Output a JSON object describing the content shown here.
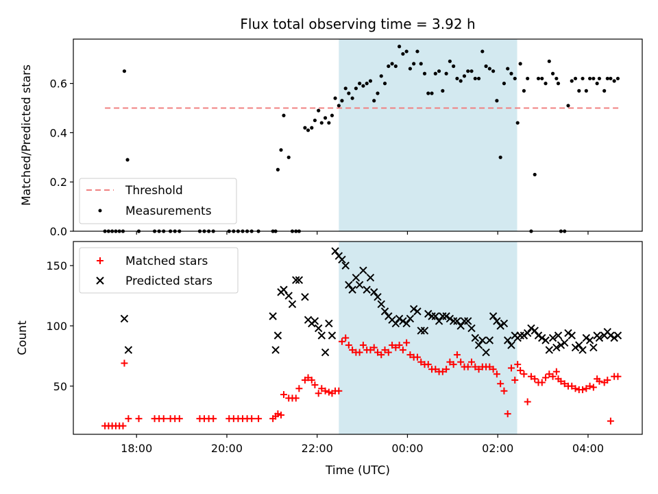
{
  "chart_data": {
    "title": "Flux total observing time = 3.92 h",
    "xlabel": "Time (UTC)",
    "x_ticks": [
      "18:00",
      "20:00",
      "22:00",
      "00:00",
      "02:00",
      "04:00"
    ],
    "x_tick_hours": [
      18,
      20,
      22,
      24,
      26,
      28
    ],
    "x_range_hours": [
      16.6,
      29.2
    ],
    "highlight_span_hours": [
      22.48,
      26.43
    ],
    "highlight_color": "#d3e9f0",
    "top_panel": {
      "type": "scatter",
      "ylabel": "Matched/Predicted stars",
      "ylim": [
        0,
        0.78
      ],
      "y_ticks": [
        0.0,
        0.2,
        0.4,
        0.6
      ],
      "threshold": {
        "name": "Threshold",
        "value": 0.5,
        "x_range_hours": [
          17.3,
          28.7
        ],
        "color": "#f08080"
      },
      "series": [
        {
          "name": "Measurements",
          "color": "#000000",
          "x": [
            17.3,
            17.38,
            17.46,
            17.54,
            17.62,
            17.7,
            17.73,
            17.8,
            18.05,
            18.4,
            18.5,
            18.6,
            18.75,
            18.85,
            18.95,
            19.4,
            19.5,
            19.6,
            19.7,
            20.05,
            20.15,
            20.25,
            20.35,
            20.45,
            20.55,
            20.7,
            21.02,
            21.08,
            21.13,
            21.2,
            21.26,
            21.37,
            21.45,
            21.53,
            21.6,
            21.73,
            21.8,
            21.88,
            21.95,
            22.03,
            22.1,
            22.18,
            22.26,
            22.33,
            22.4,
            22.48,
            22.55,
            22.63,
            22.7,
            22.78,
            22.86,
            22.94,
            23.02,
            23.1,
            23.18,
            23.26,
            23.34,
            23.42,
            23.5,
            23.58,
            23.66,
            23.74,
            23.82,
            23.9,
            23.98,
            24.06,
            24.14,
            24.22,
            24.3,
            24.38,
            24.46,
            24.54,
            24.62,
            24.7,
            24.78,
            24.86,
            24.94,
            25.02,
            25.1,
            25.18,
            25.26,
            25.34,
            25.42,
            25.5,
            25.58,
            25.66,
            25.74,
            25.82,
            25.9,
            25.98,
            26.06,
            26.14,
            26.22,
            26.3,
            26.38,
            26.44,
            26.5,
            26.58,
            26.66,
            26.74,
            26.82,
            26.9,
            26.98,
            27.06,
            27.14,
            27.22,
            27.3,
            27.34,
            27.4,
            27.48,
            27.56,
            27.64,
            27.72,
            27.8,
            27.88,
            27.96,
            28.04,
            28.12,
            28.2,
            28.25,
            28.36,
            28.43,
            28.5,
            28.58,
            28.66
          ],
          "y": [
            0.0,
            0.0,
            0.0,
            0.0,
            0.0,
            0.0,
            0.65,
            0.29,
            0.0,
            0.0,
            0.0,
            0.0,
            0.0,
            0.0,
            0.0,
            0.0,
            0.0,
            0.0,
            0.0,
            0.0,
            0.0,
            0.0,
            0.0,
            0.0,
            0.0,
            0.0,
            0.0,
            0.0,
            0.25,
            0.33,
            0.47,
            0.3,
            0.0,
            0.0,
            0.0,
            0.42,
            0.41,
            0.42,
            0.45,
            0.49,
            0.44,
            0.46,
            0.44,
            0.47,
            0.54,
            0.51,
            0.53,
            0.58,
            0.56,
            0.54,
            0.58,
            0.6,
            0.59,
            0.6,
            0.61,
            0.53,
            0.56,
            0.63,
            0.6,
            0.67,
            0.68,
            0.67,
            0.75,
            0.72,
            0.73,
            0.66,
            0.68,
            0.73,
            0.68,
            0.64,
            0.56,
            0.56,
            0.64,
            0.65,
            0.57,
            0.64,
            0.69,
            0.67,
            0.62,
            0.61,
            0.63,
            0.65,
            0.65,
            0.62,
            0.62,
            0.73,
            0.67,
            0.66,
            0.65,
            0.53,
            0.3,
            0.6,
            0.66,
            0.64,
            0.62,
            0.44,
            0.68,
            0.57,
            0.62,
            0.0,
            0.23,
            0.62,
            0.62,
            0.6,
            0.69,
            0.64,
            0.62,
            0.6,
            0.0,
            0.0,
            0.51,
            0.61,
            0.62,
            0.57,
            0.62,
            0.57,
            0.62,
            0.62,
            0.6,
            0.62,
            0.57,
            0.62,
            0.62,
            0.61,
            0.62
          ]
        }
      ]
    },
    "bottom_panel": {
      "type": "scatter",
      "ylabel": "Count",
      "ylim": [
        10,
        170
      ],
      "y_ticks": [
        50,
        100,
        150
      ],
      "series": [
        {
          "name": "Matched stars",
          "marker": "+",
          "color": "#ff0000",
          "x": [
            17.3,
            17.38,
            17.46,
            17.54,
            17.62,
            17.7,
            17.73,
            17.82,
            18.05,
            18.4,
            18.5,
            18.6,
            18.75,
            18.85,
            18.95,
            19.4,
            19.5,
            19.6,
            19.7,
            20.05,
            20.15,
            20.25,
            20.35,
            20.45,
            20.55,
            20.7,
            21.02,
            21.08,
            21.13,
            21.2,
            21.26,
            21.37,
            21.45,
            21.53,
            21.6,
            21.73,
            21.8,
            21.88,
            21.95,
            22.03,
            22.1,
            22.18,
            22.26,
            22.33,
            22.4,
            22.48,
            22.55,
            22.63,
            22.7,
            22.78,
            22.86,
            22.94,
            23.02,
            23.1,
            23.18,
            23.26,
            23.34,
            23.42,
            23.5,
            23.58,
            23.66,
            23.74,
            23.82,
            23.9,
            23.98,
            24.06,
            24.14,
            24.22,
            24.3,
            24.38,
            24.46,
            24.54,
            24.62,
            24.7,
            24.78,
            24.86,
            24.94,
            25.02,
            25.1,
            25.18,
            25.26,
            25.34,
            25.42,
            25.5,
            25.58,
            25.66,
            25.74,
            25.82,
            25.9,
            25.98,
            26.06,
            26.14,
            26.22,
            26.3,
            26.38,
            26.44,
            26.5,
            26.58,
            26.66,
            26.74,
            26.82,
            26.9,
            26.98,
            27.06,
            27.14,
            27.22,
            27.3,
            27.34,
            27.4,
            27.48,
            27.56,
            27.64,
            27.72,
            27.8,
            27.88,
            27.96,
            28.04,
            28.12,
            28.2,
            28.25,
            28.36,
            28.43,
            28.5,
            28.58,
            28.66
          ],
          "y": [
            17,
            17,
            17,
            17,
            17,
            17,
            69,
            23,
            23,
            23,
            23,
            23,
            23,
            23,
            23,
            23,
            23,
            23,
            23,
            23,
            23,
            23,
            23,
            23,
            23,
            23,
            23,
            25,
            27,
            26,
            43,
            40,
            40,
            40,
            48,
            55,
            57,
            55,
            51,
            44,
            48,
            46,
            45,
            44,
            46,
            46,
            87,
            90,
            84,
            80,
            78,
            78,
            84,
            80,
            80,
            82,
            78,
            76,
            80,
            78,
            84,
            82,
            84,
            80,
            86,
            76,
            74,
            74,
            70,
            68,
            68,
            64,
            64,
            62,
            62,
            64,
            70,
            68,
            76,
            70,
            66,
            66,
            70,
            66,
            64,
            66,
            66,
            66,
            64,
            60,
            52,
            46,
            27,
            65,
            55,
            68,
            63,
            60,
            37,
            58,
            56,
            53,
            53,
            57,
            60,
            58,
            62,
            56,
            54,
            52,
            50,
            50,
            48,
            47,
            47,
            48,
            50,
            49,
            56,
            54,
            53,
            55,
            21,
            58,
            58
          ]
        },
        {
          "name": "Predicted stars",
          "marker": "x",
          "color": "#000000",
          "x": [
            17.73,
            17.82,
            21.02,
            21.08,
            21.13,
            21.2,
            21.26,
            21.37,
            21.45,
            21.53,
            21.6,
            21.73,
            21.8,
            21.88,
            21.95,
            22.03,
            22.1,
            22.18,
            22.26,
            22.33,
            22.4,
            22.48,
            22.55,
            22.63,
            22.7,
            22.78,
            22.86,
            22.94,
            23.02,
            23.1,
            23.18,
            23.26,
            23.34,
            23.42,
            23.5,
            23.58,
            23.66,
            23.74,
            23.82,
            23.9,
            23.98,
            24.06,
            24.14,
            24.22,
            24.3,
            24.38,
            24.46,
            24.54,
            24.62,
            24.7,
            24.78,
            24.86,
            24.94,
            25.02,
            25.1,
            25.18,
            25.26,
            25.34,
            25.42,
            25.5,
            25.58,
            25.66,
            25.74,
            25.82,
            25.9,
            25.98,
            26.06,
            26.14,
            26.22,
            26.3,
            26.38,
            26.44,
            26.5,
            26.58,
            26.66,
            26.74,
            26.82,
            26.9,
            26.98,
            27.06,
            27.14,
            27.22,
            27.3,
            27.34,
            27.4,
            27.48,
            27.56,
            27.64,
            27.72,
            27.8,
            27.88,
            27.96,
            28.04,
            28.12,
            28.2,
            28.25,
            28.36,
            28.43,
            28.5,
            28.58,
            28.66
          ],
          "y": [
            106,
            80,
            108,
            80,
            92,
            128,
            130,
            125,
            118,
            138,
            138,
            124,
            105,
            102,
            104,
            98,
            92,
            78,
            102,
            92,
            162,
            158,
            155,
            150,
            134,
            130,
            140,
            134,
            146,
            130,
            140,
            128,
            124,
            118,
            112,
            108,
            105,
            102,
            106,
            104,
            102,
            106,
            114,
            112,
            96,
            96,
            110,
            108,
            108,
            104,
            108,
            108,
            106,
            104,
            104,
            100,
            104,
            104,
            98,
            90,
            84,
            88,
            78,
            88,
            108,
            104,
            100,
            102,
            88,
            84,
            92,
            90,
            92,
            92,
            94,
            98,
            96,
            92,
            90,
            88,
            80,
            90,
            82,
            92,
            84,
            86,
            94,
            92,
            82,
            84,
            80,
            90,
            88,
            82,
            92,
            90,
            92,
            95,
            92,
            90,
            92
          ]
        }
      ]
    }
  }
}
